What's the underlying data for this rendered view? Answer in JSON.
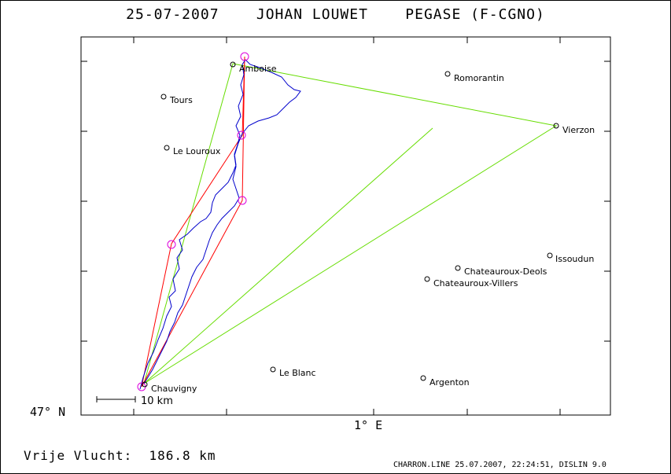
{
  "title": "25-07-2007    JOHAN LOUWET    PEGASE (F-CGNO)",
  "distance_label": "Vrije Vlucht:  186.8 km",
  "footer": "CHARRON.LINE 25.07.2007, 22:24:51, DISLIN 9.0",
  "axis": {
    "lat_label": "47° N",
    "lon_label": "1° E"
  },
  "scale": {
    "label": "10 km"
  },
  "colors": {
    "track": "#0000cc",
    "task": "#ff0000",
    "sector": "#66dd00",
    "turnpoint": "#dd00dd"
  },
  "cities": [
    {
      "name": "Amboise"
    },
    {
      "name": "Romorantin"
    },
    {
      "name": "Tours"
    },
    {
      "name": "Vierzon"
    },
    {
      "name": "Le Louroux"
    },
    {
      "name": "Issoudun"
    },
    {
      "name": "Chateauroux-Deols"
    },
    {
      "name": "Chateauroux-Villers"
    },
    {
      "name": "Le Blanc"
    },
    {
      "name": "Argenton"
    },
    {
      "name": "Chauvigny"
    }
  ]
}
